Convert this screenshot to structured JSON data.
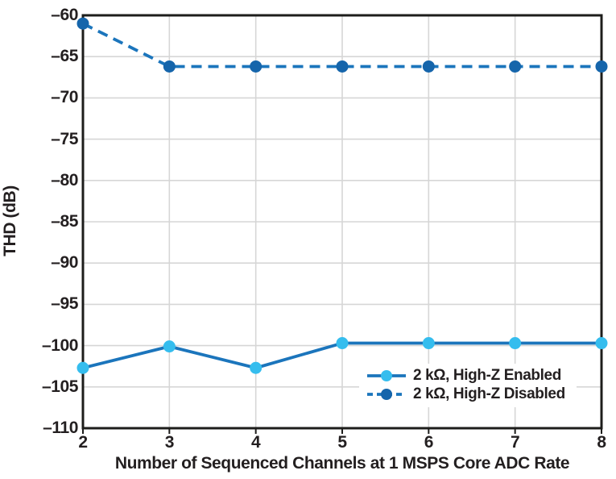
{
  "figure": {
    "background": "#ffffff",
    "text_color": "#231f20",
    "frame_color": "#1d1d1b",
    "grid_color": "#d6d6d6"
  },
  "chart_data": {
    "type": "line",
    "title": "",
    "xlabel": "Number of Sequenced Channels at 1 MSPS Core ADC Rate",
    "ylabel": "THD (dB)",
    "x": [
      2,
      3,
      4,
      5,
      6,
      7,
      8
    ],
    "xlim": [
      2,
      8
    ],
    "ylim": [
      -110,
      -60
    ],
    "ytick_step": 5,
    "xtick_labels": [
      "2",
      "3",
      "4",
      "5",
      "6",
      "7",
      "8"
    ],
    "ytick_labels": [
      "–60",
      "–65",
      "–70",
      "–75",
      "–80",
      "–85",
      "–90",
      "–95",
      "–100",
      "–105",
      "–110"
    ],
    "grid": true,
    "legend_position": "inside-bottom-right",
    "series": [
      {
        "name": "2 kΩ, High-Z Enabled",
        "values": [
          -102.7,
          -100.1,
          -102.7,
          -99.7,
          -99.7,
          -99.7,
          -99.7
        ],
        "line_style": "solid",
        "line_color": "#1b75bc",
        "marker_color": "#35bdee"
      },
      {
        "name": "2 kΩ, High-Z Disabled",
        "values": [
          -61.0,
          -66.2,
          -66.2,
          -66.2,
          -66.2,
          -66.2,
          -66.2
        ],
        "line_style": "dashed",
        "line_color": "#1b75bc",
        "marker_color": "#1565ab"
      }
    ]
  }
}
